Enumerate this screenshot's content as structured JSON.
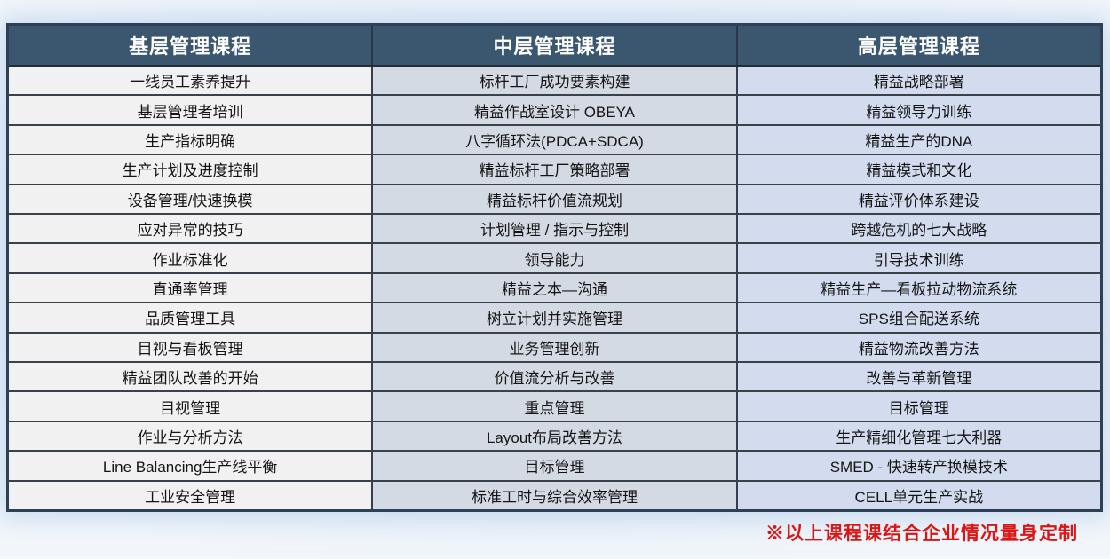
{
  "table": {
    "columns": [
      {
        "header": "基层管理课程",
        "rows": [
          "一线员工素养提升",
          "基层管理者培训",
          "生产指标明确",
          "生产计划及进度控制",
          "设备管理/快速换模",
          "应对异常的技巧",
          "作业标准化",
          "直通率管理",
          "品质管理工具",
          "目视与看板管理",
          "精益团队改善的开始",
          "目视管理",
          "作业与分析方法",
          "Line Balancing生产线平衡",
          "工业安全管理"
        ]
      },
      {
        "header": "中层管理课程",
        "rows": [
          "标杆工厂成功要素构建",
          "精益作战室设计 OBEYA",
          "八字循环法(PDCA+SDCA)",
          "精益标杆工厂策略部署",
          "精益标杆价值流规划",
          "计划管理 / 指示与控制",
          "领导能力",
          "精益之本—沟通",
          "树立计划并实施管理",
          "业务管理创新",
          "价值流分析与改善",
          "重点管理",
          "Layout布局改善方法",
          "目标管理",
          "标准工时与综合效率管理"
        ]
      },
      {
        "header": "高层管理课程",
        "rows": [
          "精益战略部署",
          "精益领导力训练",
          "精益生产的DNA",
          "精益模式和文化",
          "精益评价体系建设",
          "跨越危机的七大战略",
          "引导技术训练",
          "精益生产—看板拉动物流系统",
          "SPS组合配送系统",
          "精益物流改善方法",
          "改善与革新管理",
          "目标管理",
          "生产精细化管理七大利器",
          "SMED - 快速转产换模技术",
          "CELL单元生产实战"
        ]
      }
    ]
  },
  "footnote": "※以上课程课结合企业情况量身定制",
  "colors": {
    "header_bg": "#3b566f",
    "header_text": "#ffffff",
    "col1_bg": "#f1f1f2",
    "col2_bg": "#d4dae4",
    "col3_bg": "#d2dcee",
    "footnote_red": "#dc1414",
    "border_dark": "#2d4156"
  }
}
